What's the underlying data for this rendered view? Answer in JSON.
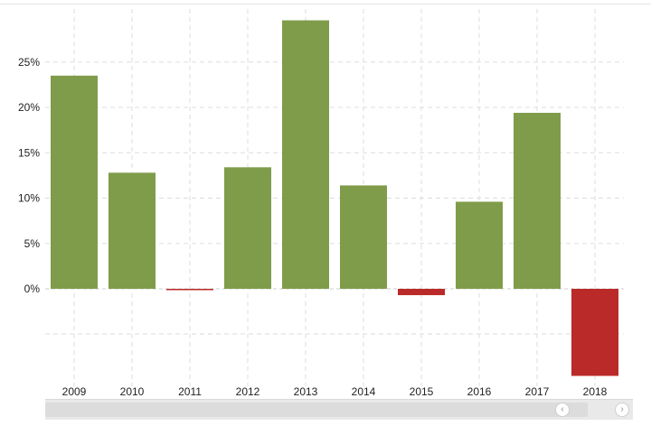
{
  "chart_data": {
    "type": "bar",
    "categories": [
      "2009",
      "2010",
      "2011",
      "2012",
      "2013",
      "2014",
      "2015",
      "2016",
      "2017",
      "2018"
    ],
    "values": [
      23.5,
      12.8,
      -0.1,
      13.4,
      29.6,
      11.4,
      -0.7,
      9.6,
      19.4,
      -9.6
    ],
    "ylim": [
      -10,
      30
    ],
    "yticks": [
      0,
      5,
      10,
      15,
      20,
      25
    ],
    "ytick_labels": [
      "0%",
      "5%",
      "10%",
      "15%",
      "20%",
      "25%"
    ],
    "grid": true,
    "title": "",
    "xlabel": "",
    "ylabel": ""
  },
  "colors": {
    "positive": "#7f9c4a",
    "negative": "#b92a28",
    "grid": "#dddddd",
    "axis_text": "#222222"
  },
  "scrollbar": {
    "left_button_icon": "chevron-left-icon",
    "right_button_icon": "chevron-right-icon"
  }
}
